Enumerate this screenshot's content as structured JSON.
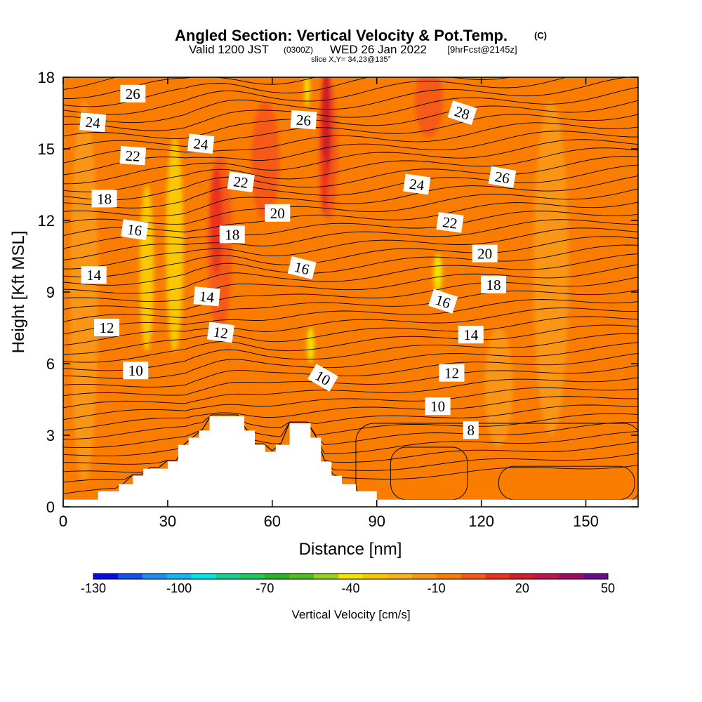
{
  "title": {
    "main": "Angled Section: Vertical Velocity & Pot.Temp.",
    "units_tag": "(C)",
    "valid_prefix": "Valid 1200 JST",
    "valid_z": "(0300Z)",
    "valid_date": "WED 26 Jan 2022",
    "forecast": "[9hrFcst@2145z]",
    "slice": "slice X,Y= 34,23@135°"
  },
  "colors": {
    "colorbar": [
      "#0a0ae6",
      "#1450f0",
      "#1e8cf5",
      "#14b4f5",
      "#00e6e6",
      "#14d28c",
      "#1ec85a",
      "#28b428",
      "#50be1e",
      "#96d21e",
      "#f0e600",
      "#fac800",
      "#fab414",
      "#fa9614",
      "#fa7d00",
      "#f55a14",
      "#eb321e",
      "#d21e28",
      "#be1450",
      "#a00a64",
      "#6e0a8c"
    ],
    "background_fill": "#fa7d00",
    "terrain": "#ffffff",
    "contour": "#000000"
  },
  "chart_data": {
    "type": "heatmap",
    "xlabel": "Distance [nm]",
    "ylabel": "Height [Kft MSL]",
    "xlim": [
      0,
      165
    ],
    "ylim": [
      0,
      18
    ],
    "xticks": [
      0,
      30,
      60,
      90,
      120,
      150
    ],
    "yticks": [
      0,
      3,
      6,
      9,
      12,
      15,
      18
    ],
    "colorbar": {
      "label": "Vertical Velocity [cm/s]",
      "ticks": [
        "-130",
        "-100",
        "-70",
        "-40",
        "-10",
        "20",
        "50"
      ],
      "min": -130,
      "max": 50,
      "step": 10
    },
    "terrain_profile": [
      [
        0,
        0.3
      ],
      [
        10,
        0.3
      ],
      [
        10,
        0.65
      ],
      [
        16,
        0.65
      ],
      [
        16,
        0.95
      ],
      [
        20,
        0.95
      ],
      [
        20,
        1.3
      ],
      [
        23,
        1.3
      ],
      [
        23,
        1.6
      ],
      [
        30,
        1.6
      ],
      [
        30,
        1.9
      ],
      [
        33,
        1.9
      ],
      [
        33,
        2.6
      ],
      [
        36,
        2.6
      ],
      [
        36,
        2.9
      ],
      [
        39,
        2.9
      ],
      [
        39,
        3.2
      ],
      [
        42,
        3.2
      ],
      [
        42,
        3.8
      ],
      [
        52,
        3.8
      ],
      [
        52,
        3.2
      ],
      [
        55,
        3.2
      ],
      [
        55,
        2.6
      ],
      [
        58,
        2.6
      ],
      [
        58,
        2.3
      ],
      [
        61,
        2.3
      ],
      [
        61,
        2.6
      ],
      [
        65,
        2.6
      ],
      [
        65,
        3.5
      ],
      [
        71,
        3.5
      ],
      [
        71,
        2.9
      ],
      [
        74,
        2.9
      ],
      [
        74,
        1.9
      ],
      [
        77,
        1.9
      ],
      [
        77,
        1.3
      ],
      [
        80,
        1.3
      ],
      [
        80,
        0.95
      ],
      [
        84,
        0.95
      ],
      [
        84,
        0.65
      ],
      [
        90,
        0.65
      ],
      [
        90,
        0.3
      ],
      [
        165,
        0.3
      ]
    ],
    "velocity_features": [
      {
        "x": 45,
        "y": 11,
        "w": 7,
        "h": 7.5,
        "value": 20
      },
      {
        "x": 44,
        "y": 12,
        "w": 3.5,
        "h": 4.5,
        "value": 30
      },
      {
        "x": 76,
        "y": 15,
        "w": 5.5,
        "h": 6,
        "value": 20
      },
      {
        "x": 75.5,
        "y": 16,
        "w": 3,
        "h": 5,
        "value": 40
      },
      {
        "x": 75,
        "y": 13.5,
        "w": 2,
        "h": 2.5,
        "value": 30
      },
      {
        "x": 58,
        "y": 14.5,
        "w": 8,
        "h": 5,
        "value": 20
      },
      {
        "x": 60,
        "y": 9.5,
        "w": 6,
        "h": 6,
        "value": 10
      },
      {
        "x": 32,
        "y": 11,
        "w": 5,
        "h": 9,
        "value": -20
      },
      {
        "x": 24,
        "y": 10,
        "w": 4,
        "h": 7,
        "value": -20
      },
      {
        "x": 71,
        "y": 6.8,
        "w": 2,
        "h": 1.5,
        "value": -30
      },
      {
        "x": 70,
        "y": 17.5,
        "w": 1.5,
        "h": 1.5,
        "value": -30
      },
      {
        "x": 107.5,
        "y": 9.8,
        "w": 2.5,
        "h": 1.6,
        "value": -30
      },
      {
        "x": 105,
        "y": 17,
        "w": 8,
        "h": 3,
        "value": 20
      },
      {
        "x": 100,
        "y": 12,
        "w": 6,
        "h": 7,
        "value": 10
      },
      {
        "x": 147,
        "y": 14,
        "w": 6,
        "h": 8,
        "value": 10
      },
      {
        "x": 153,
        "y": 13,
        "w": 3.5,
        "h": 6,
        "value": 10
      },
      {
        "x": 12.5,
        "y": 13,
        "w": 2.5,
        "h": 4,
        "value": 10
      },
      {
        "x": 10,
        "y": 4,
        "w": 8,
        "h": 5,
        "value": 10
      },
      {
        "x": 112,
        "y": 1.5,
        "w": 4,
        "h": 3,
        "value": 10
      },
      {
        "x": 68,
        "y": 4.2,
        "w": 8,
        "h": 1.5,
        "value": 10
      },
      {
        "x": 6,
        "y": 9,
        "w": 8,
        "h": 16,
        "value": 0
      },
      {
        "x": 140,
        "y": 10,
        "w": 10,
        "h": 14,
        "value": 0
      },
      {
        "x": 125,
        "y": 5,
        "w": 8,
        "h": 5,
        "value": 0
      }
    ],
    "contour_labels": [
      {
        "text": "26",
        "x": 20,
        "y": 17.3,
        "rot": 0
      },
      {
        "text": "24",
        "x": 8.5,
        "y": 16.1,
        "rot": 5
      },
      {
        "text": "22",
        "x": 20,
        "y": 14.7,
        "rot": 4
      },
      {
        "text": "18",
        "x": 11.8,
        "y": 12.9,
        "rot": 0
      },
      {
        "text": "16",
        "x": 20.5,
        "y": 11.6,
        "rot": 8
      },
      {
        "text": "14",
        "x": 8.8,
        "y": 9.7,
        "rot": 0
      },
      {
        "text": "12",
        "x": 12.5,
        "y": 7.5,
        "rot": 0
      },
      {
        "text": "10",
        "x": 20.8,
        "y": 5.7,
        "rot": 0
      },
      {
        "text": "24",
        "x": 39.5,
        "y": 15.2,
        "rot": 6
      },
      {
        "text": "22",
        "x": 51,
        "y": 13.6,
        "rot": 8
      },
      {
        "text": "18",
        "x": 48.5,
        "y": 11.4,
        "rot": 0
      },
      {
        "text": "14",
        "x": 41.2,
        "y": 8.8,
        "rot": 5
      },
      {
        "text": "12",
        "x": 45.2,
        "y": 7.3,
        "rot": 8
      },
      {
        "text": "26",
        "x": 69,
        "y": 16.2,
        "rot": 4
      },
      {
        "text": "20",
        "x": 61.5,
        "y": 12.3,
        "rot": 0
      },
      {
        "text": "16",
        "x": 68.5,
        "y": 10,
        "rot": 14
      },
      {
        "text": "10",
        "x": 74.5,
        "y": 5.4,
        "rot": 30
      },
      {
        "text": "28",
        "x": 114.5,
        "y": 16.5,
        "rot": 18
      },
      {
        "text": "24",
        "x": 101.5,
        "y": 13.5,
        "rot": 8
      },
      {
        "text": "26",
        "x": 126,
        "y": 13.8,
        "rot": 10
      },
      {
        "text": "22",
        "x": 111,
        "y": 11.9,
        "rot": 8
      },
      {
        "text": "20",
        "x": 121,
        "y": 10.6,
        "rot": 0
      },
      {
        "text": "18",
        "x": 123.5,
        "y": 9.3,
        "rot": 0
      },
      {
        "text": "16",
        "x": 109,
        "y": 8.6,
        "rot": 18
      },
      {
        "text": "14",
        "x": 117,
        "y": 7.2,
        "rot": 0
      },
      {
        "text": "12",
        "x": 111.5,
        "y": 5.6,
        "rot": 0
      },
      {
        "text": "10",
        "x": 107.5,
        "y": 4.2,
        "rot": 0
      },
      {
        "text": "8",
        "x": 117,
        "y": 3.2,
        "rot": 0
      }
    ]
  }
}
